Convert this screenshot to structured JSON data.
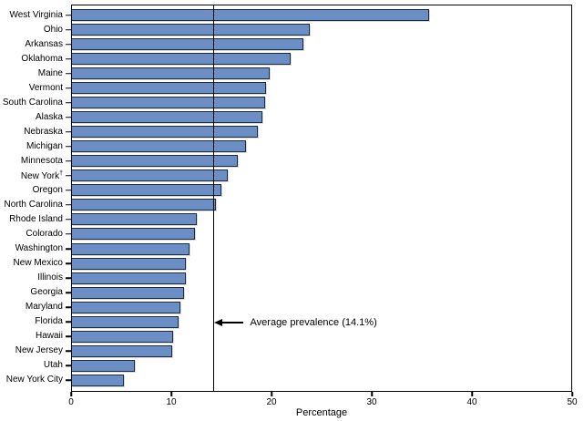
{
  "chart_data": {
    "type": "bar",
    "orientation": "horizontal",
    "xlabel": "Percentage",
    "xlim": [
      0,
      50
    ],
    "xticks": [
      0,
      10,
      20,
      30,
      40,
      50
    ],
    "grid": false,
    "legend": false,
    "categories": [
      "West Virginia",
      "Ohio",
      "Arkansas",
      "Oklahoma",
      "Maine",
      "Vermont",
      "South Carolina",
      "Alaska",
      "Nebraska",
      "Michigan",
      "Minnesota",
      "New York†",
      "Oregon",
      "North Carolina",
      "Rhode Island",
      "Colorado",
      "Washington",
      "New Mexico",
      "Illinois",
      "Georgia",
      "Maryland",
      "Florida",
      "Hawaii",
      "New Jersey",
      "Utah",
      "New York City"
    ],
    "values": [
      35.8,
      23.8,
      23.2,
      21.9,
      19.8,
      19.4,
      19.3,
      19.1,
      18.6,
      17.4,
      16.6,
      15.6,
      15.0,
      14.4,
      12.5,
      12.3,
      11.8,
      11.4,
      11.4,
      11.2,
      10.9,
      10.7,
      10.1,
      10.0,
      6.3,
      5.2
    ],
    "reference_line": {
      "value": 14.1,
      "label": "Average prevalence (14.1%)"
    },
    "colors": {
      "bar_fill": "#6c8ec6",
      "bar_border": "#1f2d3a",
      "axis": "#000000"
    }
  }
}
